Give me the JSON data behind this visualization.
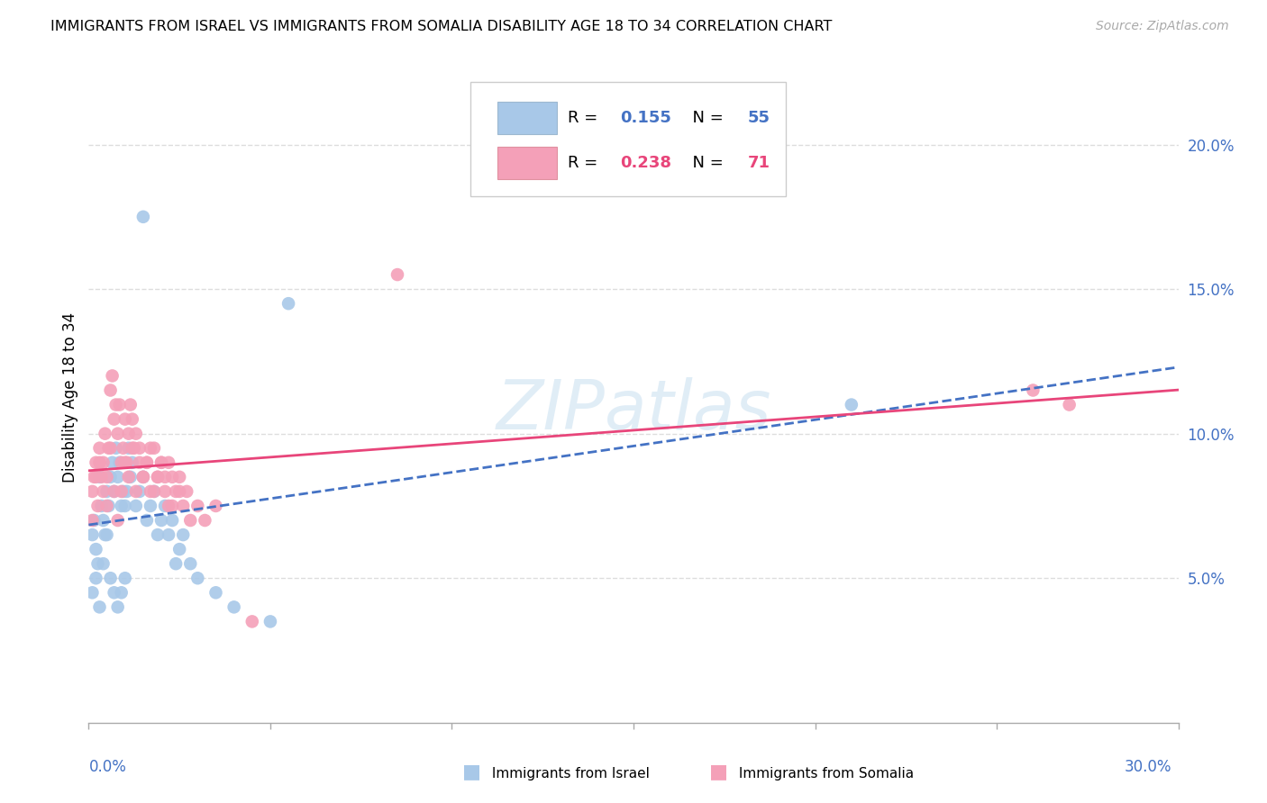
{
  "title": "IMMIGRANTS FROM ISRAEL VS IMMIGRANTS FROM SOMALIA DISABILITY AGE 18 TO 34 CORRELATION CHART",
  "source": "Source: ZipAtlas.com",
  "ylabel": "Disability Age 18 to 34",
  "xlim": [
    0.0,
    30.0
  ],
  "ylim": [
    0.0,
    22.5
  ],
  "yticks": [
    5.0,
    10.0,
    15.0,
    20.0
  ],
  "ytick_labels": [
    "5.0%",
    "10.0%",
    "15.0%",
    "20.0%"
  ],
  "xtick_labels_show": [
    "0.0%",
    "30.0%"
  ],
  "legend_israel_R": "0.155",
  "legend_israel_N": "55",
  "legend_somalia_R": "0.238",
  "legend_somalia_N": "71",
  "color_israel": "#a8c8e8",
  "color_somalia": "#f4a0b8",
  "color_israel_line": "#4472c4",
  "color_somalia_line": "#e8457a",
  "color_axis_labels": "#4472c4",
  "color_grid": "#dddddd",
  "watermark": "ZIPatlas",
  "israel_x": [
    0.1,
    0.15,
    0.2,
    0.25,
    0.3,
    0.35,
    0.4,
    0.45,
    0.5,
    0.55,
    0.6,
    0.65,
    0.7,
    0.75,
    0.8,
    0.85,
    0.9,
    0.95,
    1.0,
    1.05,
    1.1,
    1.15,
    1.2,
    1.3,
    1.4,
    1.5,
    1.6,
    1.7,
    1.8,
    1.9,
    2.0,
    2.1,
    2.2,
    2.3,
    2.4,
    2.5,
    2.6,
    2.8,
    3.0,
    3.5,
    4.0,
    5.0,
    0.1,
    0.2,
    0.3,
    0.4,
    0.5,
    0.6,
    0.7,
    0.8,
    0.9,
    1.0,
    1.5,
    21.0,
    5.5
  ],
  "israel_y": [
    6.5,
    7.0,
    6.0,
    5.5,
    8.5,
    7.5,
    7.0,
    6.5,
    8.0,
    7.5,
    8.5,
    9.0,
    8.0,
    9.5,
    8.5,
    9.0,
    7.5,
    8.0,
    7.5,
    8.0,
    9.5,
    8.5,
    9.0,
    7.5,
    8.0,
    8.5,
    7.0,
    7.5,
    8.0,
    6.5,
    7.0,
    7.5,
    6.5,
    7.0,
    5.5,
    6.0,
    6.5,
    5.5,
    5.0,
    4.5,
    4.0,
    3.5,
    4.5,
    5.0,
    4.0,
    5.5,
    6.5,
    5.0,
    4.5,
    4.0,
    4.5,
    5.0,
    17.5,
    11.0,
    14.5
  ],
  "somalia_x": [
    0.1,
    0.15,
    0.2,
    0.25,
    0.3,
    0.35,
    0.4,
    0.45,
    0.5,
    0.55,
    0.6,
    0.65,
    0.7,
    0.75,
    0.8,
    0.85,
    0.9,
    0.95,
    1.0,
    1.05,
    1.1,
    1.15,
    1.2,
    1.25,
    1.3,
    1.4,
    1.5,
    1.6,
    1.7,
    1.8,
    1.9,
    2.0,
    2.1,
    2.2,
    2.3,
    2.4,
    2.5,
    2.6,
    2.7,
    2.8,
    3.0,
    3.2,
    3.5,
    0.1,
    0.2,
    0.3,
    0.4,
    0.5,
    0.6,
    0.7,
    0.8,
    0.9,
    1.0,
    1.1,
    1.2,
    1.3,
    1.4,
    1.5,
    1.6,
    1.7,
    1.8,
    1.9,
    2.0,
    2.1,
    2.2,
    2.3,
    2.5,
    8.5,
    4.5,
    26.0,
    27.0
  ],
  "somalia_y": [
    8.0,
    8.5,
    9.0,
    7.5,
    9.5,
    8.5,
    9.0,
    10.0,
    8.5,
    9.5,
    11.5,
    12.0,
    10.5,
    11.0,
    10.0,
    11.0,
    9.0,
    9.5,
    10.5,
    9.0,
    10.0,
    11.0,
    10.5,
    9.5,
    10.0,
    9.5,
    8.5,
    9.0,
    9.5,
    8.0,
    8.5,
    9.0,
    8.5,
    9.0,
    7.5,
    8.0,
    8.5,
    7.5,
    8.0,
    7.0,
    7.5,
    7.0,
    7.5,
    7.0,
    8.5,
    9.0,
    8.0,
    7.5,
    9.5,
    8.0,
    7.0,
    8.0,
    9.0,
    8.5,
    9.5,
    8.0,
    9.0,
    8.5,
    9.0,
    8.0,
    9.5,
    8.5,
    9.0,
    8.0,
    7.5,
    8.5,
    8.0,
    15.5,
    3.5,
    11.5,
    11.0
  ]
}
